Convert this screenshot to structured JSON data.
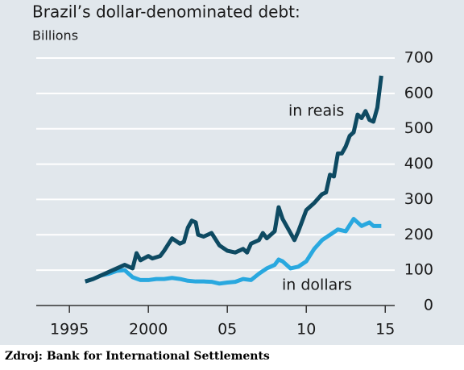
{
  "chart_data": {
    "type": "line",
    "title": "Brazil’s dollar-denominated debt:",
    "subtitle": "Billions",
    "source": "Zdroj: Bank for International Settlements",
    "xlim": [
      1992.9,
      2015.6
    ],
    "xticks": [
      1995,
      2000,
      {
        "value": 2005,
        "label": "05"
      },
      {
        "value": 2010,
        "label": "10"
      },
      {
        "value": 2015,
        "label": "15"
      }
    ],
    "ylim": [
      0,
      700
    ],
    "yticks": [
      0,
      100,
      200,
      300,
      400,
      500,
      600,
      700
    ],
    "grid": true,
    "annotations": [
      {
        "text": "in reais"
      },
      {
        "text": "in dollars"
      }
    ],
    "series": [
      {
        "name": "in reais",
        "color": "#0e4a62",
        "x": [
          1996,
          1996.5,
          1997,
          1997.5,
          1998,
          1998.5,
          1999,
          1999.25,
          1999.5,
          2000,
          2000.25,
          2000.75,
          2001,
          2001.5,
          2002,
          2002.25,
          2002.5,
          2002.75,
          2003,
          2003.15,
          2003.5,
          2004,
          2004.5,
          2005,
          2005.5,
          2006,
          2006.25,
          2006.5,
          2007,
          2007.25,
          2007.5,
          2008,
          2008.25,
          2008.5,
          2009,
          2009.25,
          2009.5,
          2010,
          2010.5,
          2011,
          2011.25,
          2011.5,
          2011.75,
          2012,
          2012.25,
          2012.5,
          2012.75,
          2013,
          2013.25,
          2013.5,
          2013.75,
          2014,
          2014.25,
          2014.5,
          2014.75
        ],
        "values": [
          68,
          75,
          85,
          95,
          105,
          115,
          105,
          148,
          128,
          140,
          133,
          140,
          155,
          190,
          175,
          180,
          220,
          240,
          235,
          200,
          195,
          205,
          170,
          155,
          150,
          160,
          150,
          175,
          185,
          205,
          190,
          210,
          278,
          245,
          205,
          185,
          210,
          270,
          290,
          315,
          320,
          370,
          365,
          430,
          430,
          450,
          480,
          490,
          540,
          530,
          550,
          525,
          520,
          560,
          650
        ]
      },
      {
        "name": "in dollars",
        "color": "#29a8df",
        "x": [
          1996,
          1996.5,
          1997,
          1997.5,
          1998,
          1998.5,
          1999,
          1999.5,
          2000,
          2000.5,
          2001,
          2001.5,
          2002,
          2002.5,
          2003,
          2003.5,
          2004,
          2004.5,
          2005,
          2005.5,
          2006,
          2006.5,
          2007,
          2007.5,
          2008,
          2008.25,
          2008.5,
          2009,
          2009.5,
          2010,
          2010.5,
          2011,
          2011.5,
          2012,
          2012.5,
          2013,
          2013.25,
          2013.5,
          2014,
          2014.25,
          2014.75
        ],
        "values": [
          68,
          75,
          85,
          90,
          98,
          100,
          80,
          72,
          72,
          75,
          75,
          78,
          75,
          70,
          68,
          68,
          67,
          62,
          65,
          67,
          75,
          72,
          90,
          105,
          115,
          130,
          125,
          105,
          110,
          125,
          160,
          185,
          200,
          215,
          210,
          245,
          235,
          225,
          235,
          225,
          225
        ]
      }
    ]
  }
}
